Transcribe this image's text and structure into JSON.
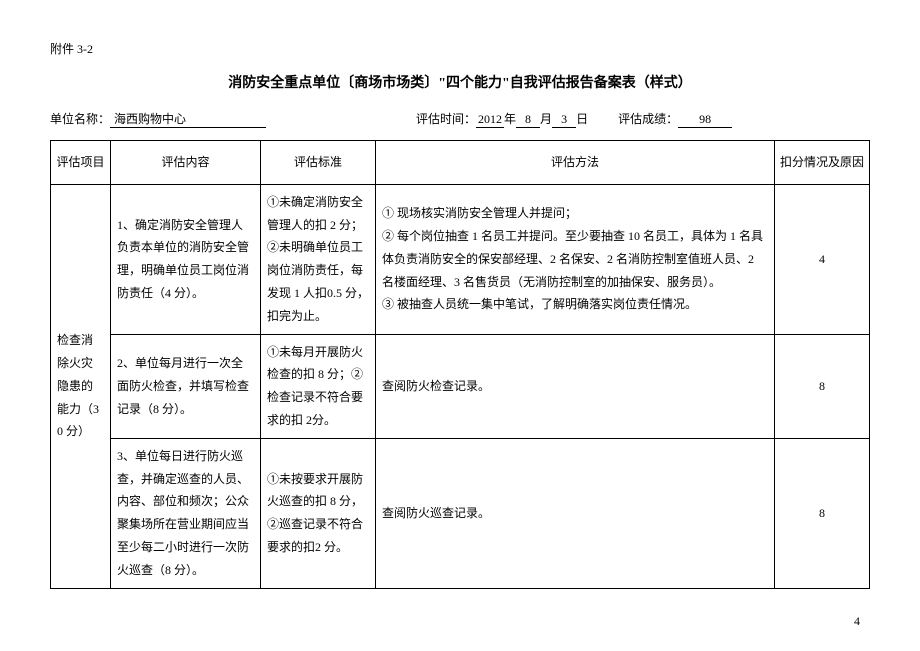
{
  "attachment": "附件 3-2",
  "title": "消防安全重点单位〔商场市场类〕\"四个能力\"自我评估报告备案表（样式）",
  "meta": {
    "unit_label": "单位名称：",
    "unit_value": "海西购物中心",
    "time_label": "评估时间：",
    "year": "2012",
    "year_suffix": "年",
    "month": "8",
    "month_suffix": "月",
    "day": "3",
    "day_suffix": "日",
    "score_label": "评估成绩：",
    "score": "98"
  },
  "headers": {
    "item": "评估项目",
    "content": "评估内容",
    "standard": "评估标准",
    "method": "评估方法",
    "deduct": "扣分情况及原因"
  },
  "section": {
    "name": "检查消除火灾隐患的能力（30 分）"
  },
  "rows": [
    {
      "content": "1、确定消防安全管理人负责本单位的消防安全管理，明确单位员工岗位消防责任（4 分）。",
      "standard": "①未确定消防安全管理人的扣 2 分；②未明确单位员工岗位消防责任，每发现 1 人扣0.5 分，扣完为止。",
      "method": "① 现场核实消防安全管理人并提问；\n② 每个岗位抽查 1 名员工并提问。至少要抽查 10 名员工，具体为 1 名具体负责消防安全的保安部经理、2 名保安、2 名消防控制室值班人员、2 名楼面经理、3 名售货员（无消防控制室的加抽保安、服务员）。\n③ 被抽查人员统一集中笔试，了解明确落实岗位责任情况。",
      "deduct": "4"
    },
    {
      "content": "2、单位每月进行一次全面防火检查，并填写检查记录（8 分）。",
      "standard": "①未每月开展防火检查的扣 8 分；②检查记录不符合要求的扣 2分。",
      "method": "查阅防火检查记录。",
      "deduct": "8"
    },
    {
      "content": "3、单位每日进行防火巡查，并确定巡查的人员、内容、部位和频次；公众聚集场所在营业期间应当至少每二小时进行一次防火巡查（8 分）。",
      "standard": "①未按要求开展防火巡查的扣 8 分，②巡查记录不符合要求的扣2 分。",
      "method": "查阅防火巡查记录。",
      "deduct": "8"
    }
  ],
  "page_number": "4"
}
